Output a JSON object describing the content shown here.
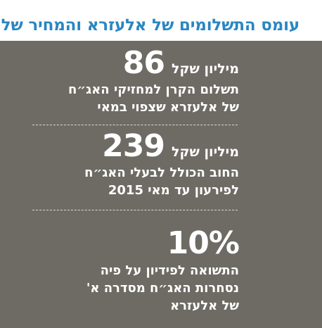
{
  "title": "עומס התשלומים של אלעזרא והמחיר שלו",
  "stats": [
    {
      "value": "86",
      "unit": "מיליון שקל",
      "lines": [
        "תשלום הקרן למחזיקי האג״ח",
        "של אלעזרא שצפוי במאי"
      ]
    },
    {
      "value": "239",
      "unit": "מיליון שקל",
      "lines": [
        "החוב הכולל לבעלי האג״ח",
        "לפירעון עד מאי 2015"
      ]
    },
    {
      "value": "10%",
      "unit": "",
      "lines": [
        "התשואה לפידיון על פיה",
        "נסחרות האג״ח מסדרה א'",
        "של אלעזרא"
      ]
    }
  ],
  "colors": {
    "title": "#2a86c2",
    "panel_background": "#6d6b64",
    "text": "#ffffff",
    "divider": "#d9d7d0"
  }
}
